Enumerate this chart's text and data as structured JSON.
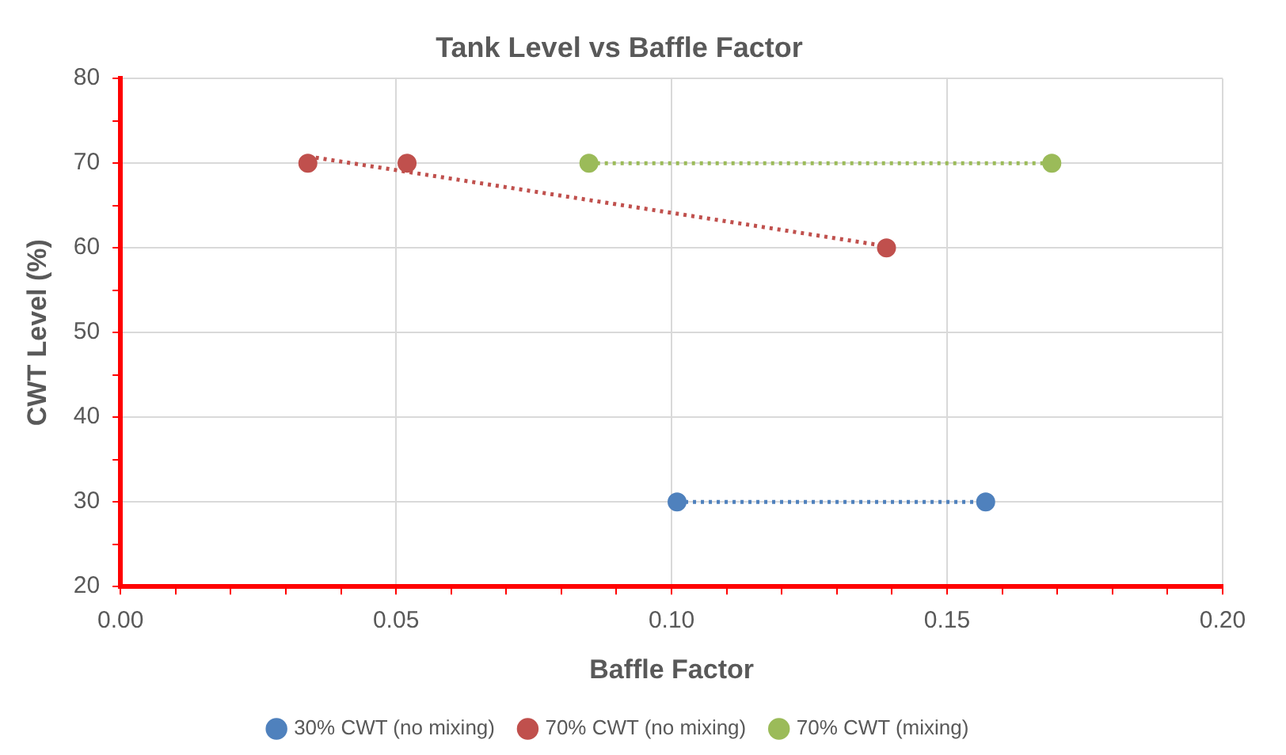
{
  "chart_data": {
    "type": "scatter",
    "title": "Tank Level vs Baffle Factor",
    "xlabel": "Baffle Factor",
    "ylabel": "CWT Level (%)",
    "xlim": [
      0,
      0.2
    ],
    "ylim": [
      20,
      80
    ],
    "xticks": [
      {
        "value": 0,
        "label": "0.00"
      },
      {
        "value": 0.01,
        "label": null
      },
      {
        "value": 0.02,
        "label": null
      },
      {
        "value": 0.03,
        "label": null
      },
      {
        "value": 0.04,
        "label": null
      },
      {
        "value": 0.05,
        "label": "0.05"
      },
      {
        "value": 0.06,
        "label": null
      },
      {
        "value": 0.07,
        "label": null
      },
      {
        "value": 0.08,
        "label": null
      },
      {
        "value": 0.09,
        "label": null
      },
      {
        "value": 0.1,
        "label": "0.10"
      },
      {
        "value": 0.11,
        "label": null
      },
      {
        "value": 0.12,
        "label": null
      },
      {
        "value": 0.13,
        "label": null
      },
      {
        "value": 0.14,
        "label": null
      },
      {
        "value": 0.15,
        "label": "0.15"
      },
      {
        "value": 0.16,
        "label": null
      },
      {
        "value": 0.17,
        "label": null
      },
      {
        "value": 0.18,
        "label": null
      },
      {
        "value": 0.19,
        "label": null
      },
      {
        "value": 0.2,
        "label": "0.20"
      }
    ],
    "yticks": [
      20,
      {
        "value": 25,
        "label": null
      },
      30,
      {
        "value": 35,
        "label": null
      },
      40,
      {
        "value": 45,
        "label": null
      },
      50,
      {
        "value": 55,
        "label": null
      },
      60,
      {
        "value": 65,
        "label": null
      },
      70,
      {
        "value": 75,
        "label": null
      },
      80
    ],
    "grid": true,
    "legend": "bottom",
    "marker": "circle",
    "series": [
      {
        "name": "30% CWT (no mixing)",
        "color": "#4f81bd",
        "x": [
          0.101,
          0.157
        ],
        "values": [
          30,
          30
        ]
      },
      {
        "name": "70% CWT (no mixing)",
        "color": "#c0504d",
        "x": [
          0.034,
          0.052,
          0.139
        ],
        "values": [
          70,
          70,
          60
        ]
      },
      {
        "name": "70% CWT (mixing)",
        "color": "#9bbb59",
        "x": [
          0.085,
          0.169
        ],
        "values": [
          70,
          70
        ]
      },
      {
        "type": "line",
        "color": "#4f81bd",
        "line_style": "dotted",
        "marker": "none",
        "x": [
          0.101,
          0.157
        ],
        "values": [
          30,
          30
        ]
      },
      {
        "type": "line",
        "color": "#c0504d",
        "line_style": "dotted",
        "marker": "none",
        "x": [
          0.034,
          0.139
        ],
        "values": [
          70.8,
          60.2
        ]
      },
      {
        "type": "line",
        "color": "#9bbb59",
        "line_style": "dotted",
        "marker": "none",
        "x": [
          0.085,
          0.169
        ],
        "values": [
          70,
          70
        ]
      }
    ]
  }
}
